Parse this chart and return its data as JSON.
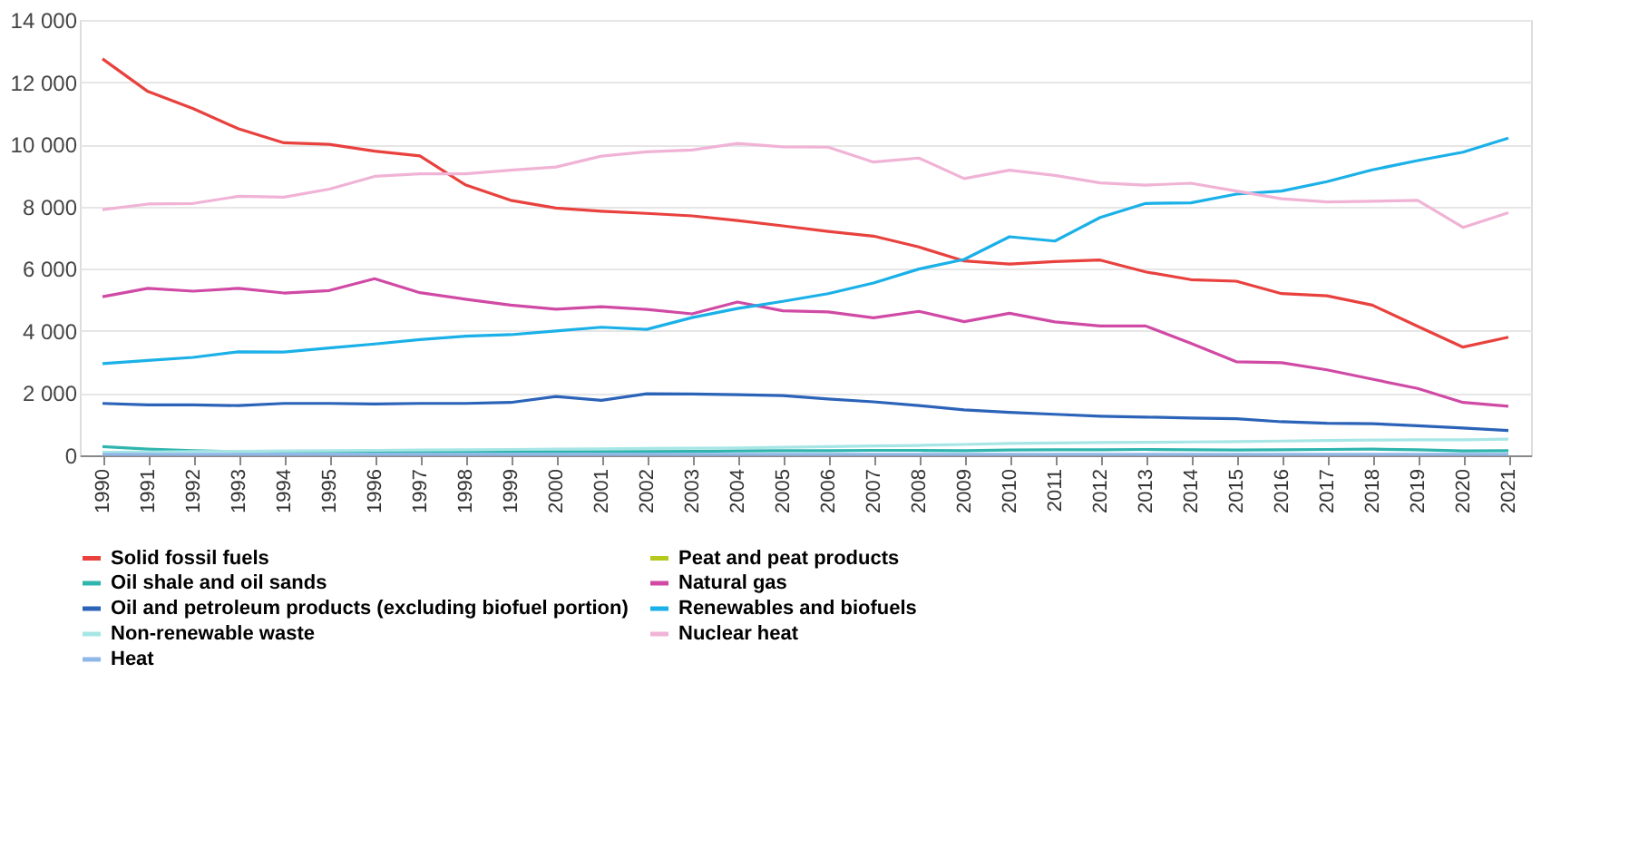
{
  "chart_data": {
    "type": "line",
    "categories": [
      "1990",
      "1991",
      "1992",
      "1993",
      "1994",
      "1995",
      "1996",
      "1997",
      "1998",
      "1999",
      "2000",
      "2001",
      "2002",
      "2003",
      "2004",
      "2005",
      "2006",
      "2007",
      "2008",
      "2009",
      "2010",
      "2011",
      "2012",
      "2013",
      "2014",
      "2015",
      "2016",
      "2017",
      "2018",
      "2019",
      "2020",
      "2021"
    ],
    "series": [
      {
        "name": "Solid fossil fuels",
        "color": "#e8413e",
        "values": [
          12750,
          11700,
          11150,
          10500,
          10050,
          10000,
          9780,
          9630,
          8700,
          8200,
          7950,
          7850,
          7780,
          7700,
          7550,
          7380,
          7200,
          7050,
          6700,
          6250,
          6150,
          6230,
          6280,
          5900,
          5650,
          5600,
          5200,
          5130,
          4830,
          4150,
          3480,
          3800
        ]
      },
      {
        "name": "Peat and peat products",
        "color": "#b5c91d",
        "values": [
          null,
          null,
          null,
          null,
          null,
          null,
          null,
          null,
          null,
          null,
          null,
          null,
          null,
          null,
          null,
          null,
          null,
          null,
          null,
          null,
          null,
          null,
          null,
          null,
          null,
          null,
          null,
          null,
          null,
          null,
          null,
          null
        ]
      },
      {
        "name": "Oil shale and oil sands",
        "color": "#2fb5ae",
        "values": [
          280,
          200,
          150,
          120,
          120,
          120,
          120,
          120,
          120,
          120,
          120,
          120,
          120,
          130,
          140,
          150,
          150,
          160,
          160,
          150,
          170,
          180,
          180,
          190,
          180,
          170,
          180,
          190,
          200,
          180,
          140,
          150
        ]
      },
      {
        "name": "Natural gas",
        "color": "#d04aa5",
        "values": [
          5100,
          5370,
          5280,
          5370,
          5220,
          5300,
          5680,
          5230,
          5020,
          4830,
          4700,
          4780,
          4690,
          4550,
          4930,
          4650,
          4610,
          4420,
          4630,
          4300,
          4570,
          4290,
          4160,
          4160,
          3600,
          3010,
          2980,
          2750,
          2450,
          2150,
          1700,
          1580
        ]
      },
      {
        "name": "Oil and petroleum products (excluding biofuel portion)",
        "color": "#2b63b8",
        "values": [
          1670,
          1620,
          1620,
          1600,
          1670,
          1670,
          1650,
          1670,
          1670,
          1700,
          1890,
          1770,
          1980,
          1970,
          1950,
          1920,
          1810,
          1720,
          1600,
          1460,
          1380,
          1320,
          1260,
          1230,
          1200,
          1180,
          1080,
          1030,
          1020,
          950,
          880,
          800
        ]
      },
      {
        "name": "Renewables and biofuels",
        "color": "#1ab0e8",
        "values": [
          2950,
          3050,
          3150,
          3330,
          3320,
          3450,
          3580,
          3720,
          3830,
          3880,
          4000,
          4120,
          4050,
          4430,
          4720,
          4950,
          5200,
          5540,
          5990,
          6300,
          7030,
          6890,
          7650,
          8100,
          8120,
          8400,
          8500,
          8800,
          9180,
          9480,
          9750,
          10200
        ]
      },
      {
        "name": "Non-renewable waste",
        "color": "#a8e6e6",
        "values": [
          100,
          110,
          120,
          130,
          140,
          150,
          160,
          170,
          180,
          190,
          200,
          210,
          220,
          230,
          240,
          260,
          280,
          300,
          320,
          350,
          380,
          400,
          410,
          420,
          430,
          440,
          460,
          480,
          490,
          500,
          500,
          520
        ]
      },
      {
        "name": "Nuclear heat",
        "color": "#f0b3d6",
        "values": [
          7900,
          8080,
          8100,
          8330,
          8300,
          8560,
          8970,
          9050,
          9050,
          9170,
          9270,
          9620,
          9760,
          9820,
          10030,
          9920,
          9910,
          9430,
          9560,
          8900,
          9170,
          9000,
          8760,
          8690,
          8750,
          8500,
          8250,
          8150,
          8170,
          8200,
          7330,
          7800
        ]
      },
      {
        "name": "Heat",
        "color": "#8fb8e8",
        "values": [
          30,
          30,
          30,
          30,
          30,
          30,
          30,
          30,
          30,
          30,
          30,
          30,
          30,
          30,
          30,
          30,
          30,
          30,
          30,
          30,
          30,
          30,
          30,
          30,
          30,
          30,
          30,
          30,
          30,
          30,
          30,
          30
        ]
      }
    ],
    "ylim": [
      0,
      14000
    ],
    "yticks": [
      0,
      {
        "value": 2000,
        "label": "2 000"
      },
      {
        "value": 4000,
        "label": "4 000"
      },
      {
        "value": 6000,
        "label": "6 000"
      },
      {
        "value": 8000,
        "label": "8 000"
      },
      {
        "value": 10000,
        "label": "10 000"
      },
      {
        "value": 12000,
        "label": "12 000"
      },
      {
        "value": 14000,
        "label": "14 000"
      }
    ],
    "grid": "y",
    "legend": "bottom"
  }
}
